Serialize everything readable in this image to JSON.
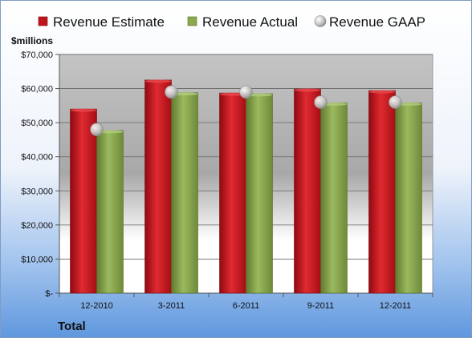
{
  "chart_data": {
    "type": "bar",
    "categories": [
      "12-2010",
      "3-2011",
      "6-2011",
      "9-2011",
      "12-2011"
    ],
    "series": [
      {
        "name": "Revenue Estimate",
        "kind": "bar",
        "values": [
          54000,
          62500,
          58700,
          59900,
          59400
        ],
        "color": "#c0141c"
      },
      {
        "name": "Revenue Actual",
        "kind": "bar",
        "values": [
          47700,
          58800,
          58500,
          55800,
          55800
        ],
        "color": "#8aa84e"
      },
      {
        "name": "Revenue GAAP",
        "kind": "marker",
        "values": [
          48000,
          59000,
          59000,
          56000,
          56000
        ],
        "color": "#c8c8c8"
      }
    ],
    "ylabel": "$millions",
    "xlabel": "Total",
    "ylim": [
      0,
      70000
    ],
    "yticks": [
      0,
      10000,
      20000,
      30000,
      40000,
      50000,
      60000,
      70000
    ],
    "ytick_labels": [
      "$-",
      "$10,000",
      "$20,000",
      "$30,000",
      "$40,000",
      "$50,000",
      "$60,000",
      "$70,000"
    ],
    "grid": true,
    "legend_position": "top"
  }
}
